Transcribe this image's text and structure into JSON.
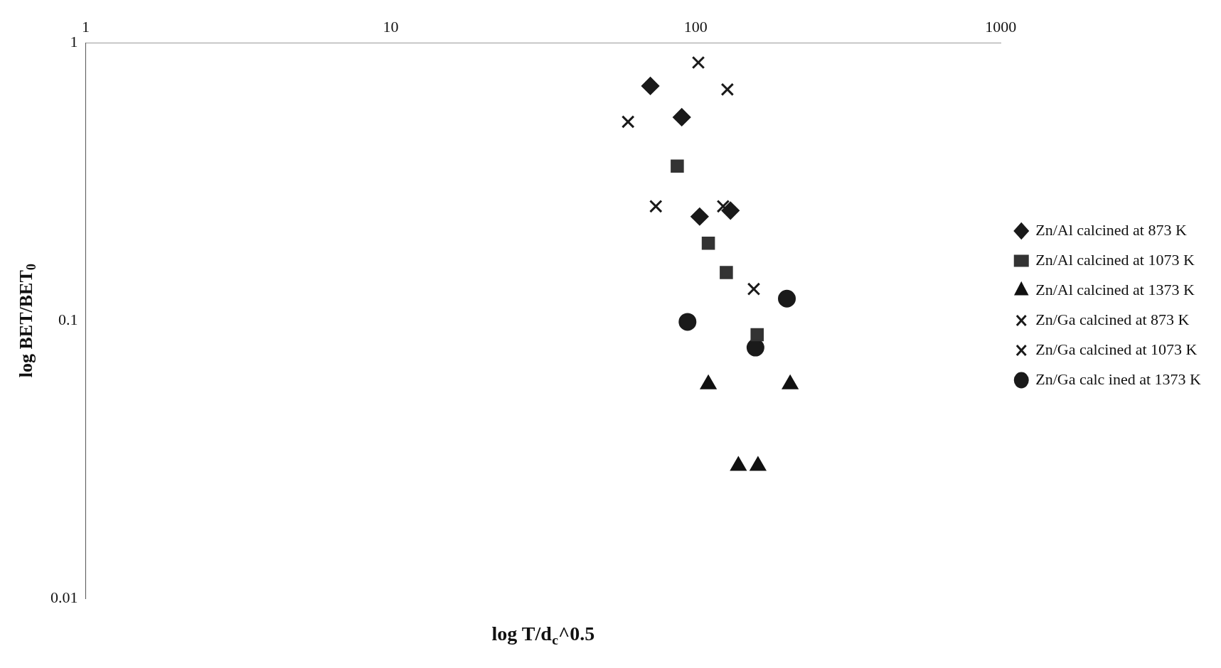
{
  "chart_data": {
    "type": "scatter",
    "xlabel": "log T/d$_{c}$^0.5",
    "ylabel": "log BET/BET$_{0}$",
    "log": "xy",
    "xlim": [
      1,
      1000
    ],
    "xticks": [
      1,
      10,
      100,
      1000
    ],
    "ylim": [
      0.01,
      1
    ],
    "yticks": [
      0.01,
      0.1,
      1
    ],
    "grid": false,
    "legend": "right",
    "series": [
      {
        "name": "Zn/Al calcined at 873 K",
        "color": "#1a1a1a",
        "marker": "diamond",
        "x": [
          71,
          90,
          103,
          130
        ],
        "values": [
          0.7,
          0.54,
          0.237,
          0.249
        ]
      },
      {
        "name": "Zn/Al calcined at 1073 K",
        "color": "#333333",
        "marker": "square",
        "x": [
          87,
          110,
          126,
          159
        ],
        "values": [
          0.36,
          0.19,
          0.149,
          0.089
        ]
      },
      {
        "name": "Zn/Al calcined at 1373 K",
        "color": "#111111",
        "marker": "triangle",
        "x": [
          110,
          204,
          138,
          160
        ],
        "values": [
          0.059,
          0.059,
          0.03,
          0.03
        ]
      },
      {
        "name": "Zn/Ga calcined at 873 K",
        "color": "#1a1a1a",
        "marker": "cross",
        "x": [
          102,
          127,
          60
        ],
        "values": [
          0.85,
          0.68,
          0.52
        ]
      },
      {
        "name": "Zn/Ga calcined at 1073 K",
        "color": "#1a1a1a",
        "marker": "cross",
        "x": [
          74,
          123,
          155
        ],
        "values": [
          0.258,
          0.258,
          0.13
        ]
      },
      {
        "name": "Zn/Ga calc ined at 1373 K",
        "color": "#1a1a1a",
        "marker": "circle",
        "x": [
          94,
          199,
          157
        ],
        "values": [
          0.099,
          0.12,
          0.08
        ]
      }
    ]
  }
}
